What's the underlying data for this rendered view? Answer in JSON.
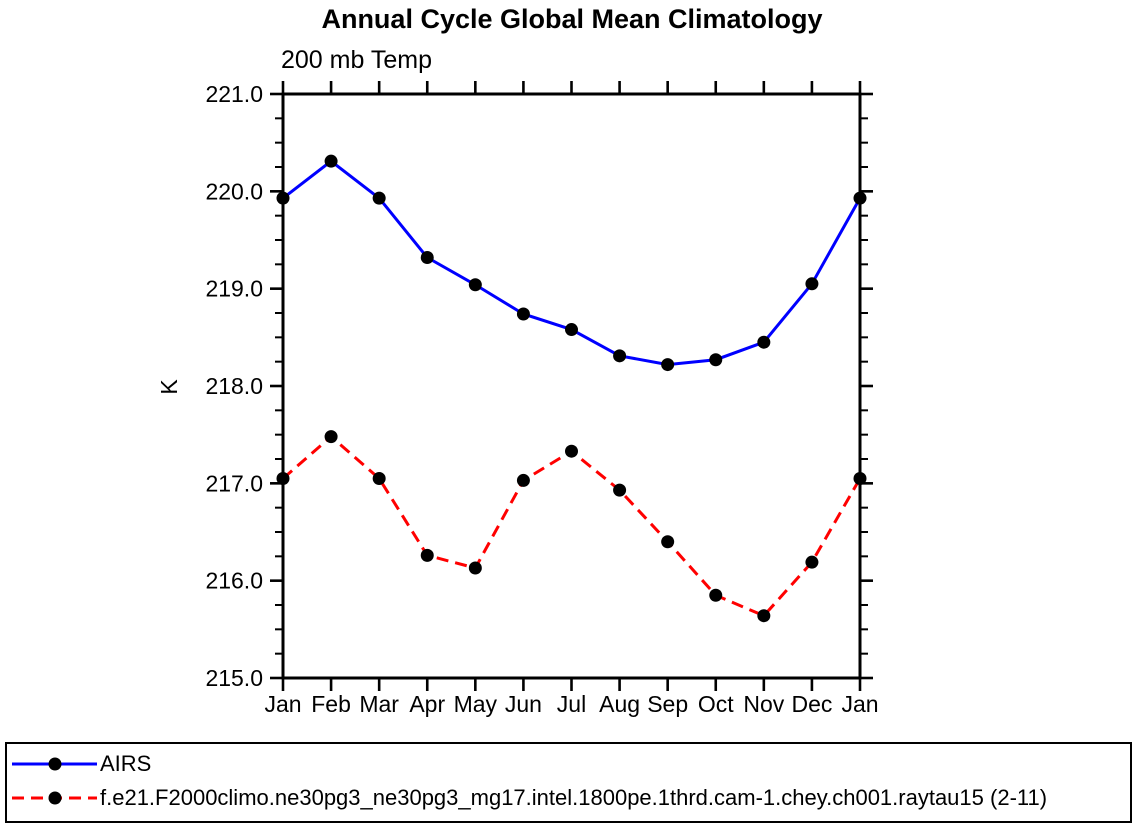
{
  "chart_data": {
    "type": "line",
    "title": "Annual Cycle Global Mean Climatology",
    "subtitle": "200 mb Temp",
    "ylabel": "K",
    "categories": [
      "Jan",
      "Feb",
      "Mar",
      "Apr",
      "May",
      "Jun",
      "Jul",
      "Aug",
      "Sep",
      "Oct",
      "Nov",
      "Dec",
      "Jan"
    ],
    "ylim": [
      215.0,
      221.0
    ],
    "y_major_step": 1.0,
    "y_minor_step": 0.25,
    "y_tick_labels": [
      "215.0",
      "216.0",
      "217.0",
      "218.0",
      "219.0",
      "220.0",
      "221.0"
    ],
    "grid": false,
    "legend_position": "bottom",
    "axis_color": "#000000",
    "background_color": "#ffffff",
    "marker": "filled-circle",
    "marker_color": "#000000",
    "series": [
      {
        "name": "AIRS",
        "color": "#0000ff",
        "line_style": "solid",
        "values": [
          219.93,
          220.31,
          219.93,
          219.32,
          219.04,
          218.74,
          218.58,
          218.31,
          218.22,
          218.27,
          218.45,
          219.05,
          219.93
        ]
      },
      {
        "name": "f.e21.F2000climo.ne30pg3_ne30pg3_mg17.intel.1800pe.1thrd.cam-1.chey.ch001.raytau15 (2-11)",
        "color": "#ff0000",
        "line_style": "dashed",
        "values": [
          217.05,
          217.48,
          217.05,
          216.26,
          216.13,
          217.03,
          217.33,
          216.93,
          216.4,
          215.85,
          215.64,
          216.19,
          217.05
        ]
      }
    ]
  }
}
